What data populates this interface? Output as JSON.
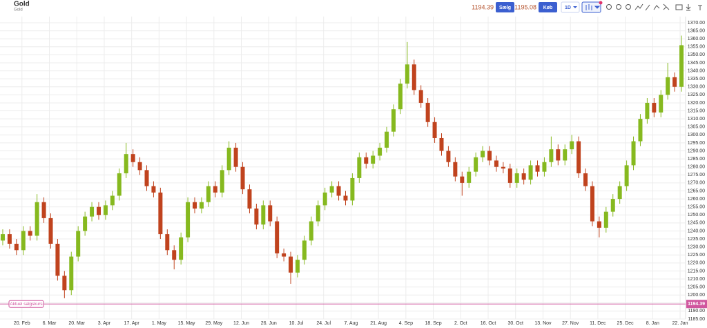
{
  "header": {
    "title": "Gold",
    "subtitle": "Gold",
    "sell_price": "1194.39",
    "sell_button": "Sælg",
    "buy_price": "1195.08",
    "buy_button": "Køb",
    "interval": "1D"
  },
  "chart_data": {
    "type": "candlestick",
    "up_color": "#86b91f",
    "down_color": "#c0431e",
    "grid": true,
    "current_price": {
      "value": 1194.39,
      "label": "1194.39"
    },
    "current_price_label": "Aktuel salgskurs",
    "current_price_color": "#d0569e",
    "xlim": [
      -8,
      242
    ],
    "xticks": [
      {
        "value": 0,
        "label": "20. Feb"
      },
      {
        "value": 10,
        "label": "6. Mar"
      },
      {
        "value": 20,
        "label": "20. Mar"
      },
      {
        "value": 30,
        "label": "3. Apr"
      },
      {
        "value": 40,
        "label": "17. Apr"
      },
      {
        "value": 50,
        "label": "1. May"
      },
      {
        "value": 60,
        "label": "15. May"
      },
      {
        "value": 70,
        "label": "29. May"
      },
      {
        "value": 80,
        "label": "12. Jun"
      },
      {
        "value": 90,
        "label": "26. Jun"
      },
      {
        "value": 100,
        "label": "10. Jul"
      },
      {
        "value": 110,
        "label": "24. Jul"
      },
      {
        "value": 120,
        "label": "7. Aug"
      },
      {
        "value": 130,
        "label": "21. Aug"
      },
      {
        "value": 140,
        "label": "4. Sep"
      },
      {
        "value": 150,
        "label": "18. Sep"
      },
      {
        "value": 160,
        "label": "2. Oct"
      },
      {
        "value": 170,
        "label": "16. Oct"
      },
      {
        "value": 180,
        "label": "30. Oct"
      },
      {
        "value": 190,
        "label": "13. Nov"
      },
      {
        "value": 200,
        "label": "27. Nov"
      },
      {
        "value": 210,
        "label": "11. Dec"
      },
      {
        "value": 220,
        "label": "25. Dec"
      },
      {
        "value": 230,
        "label": "8. Jan"
      },
      {
        "value": 240,
        "label": "22. Jan"
      }
    ],
    "ylim": [
      1185,
      1370
    ],
    "yticks": [
      {
        "value": 1185,
        "label": "1185.00"
      },
      {
        "value": 1190,
        "label": "1190.00"
      },
      {
        "value": 1195,
        "label": "1195.00"
      },
      {
        "value": 1200,
        "label": "1200.00"
      },
      {
        "value": 1205,
        "label": "1205.00"
      },
      {
        "value": 1210,
        "label": "1210.00"
      },
      {
        "value": 1215,
        "label": "1215.00"
      },
      {
        "value": 1220,
        "label": "1220.00"
      },
      {
        "value": 1225,
        "label": "1225.00"
      },
      {
        "value": 1230,
        "label": "1230.00"
      },
      {
        "value": 1235,
        "label": "1235.00"
      },
      {
        "value": 1240,
        "label": "1240.00"
      },
      {
        "value": 1245,
        "label": "1245.00"
      },
      {
        "value": 1250,
        "label": "1250.00"
      },
      {
        "value": 1255,
        "label": "1255.00"
      },
      {
        "value": 1260,
        "label": "1260.00"
      },
      {
        "value": 1265,
        "label": "1265.00"
      },
      {
        "value": 1270,
        "label": "1270.00"
      },
      {
        "value": 1275,
        "label": "1275.00"
      },
      {
        "value": 1280,
        "label": "1280.00"
      },
      {
        "value": 1285,
        "label": "1285.00"
      },
      {
        "value": 1290,
        "label": "1290.00"
      },
      {
        "value": 1295,
        "label": "1295.00"
      },
      {
        "value": 1300,
        "label": "1300.00"
      },
      {
        "value": 1305,
        "label": "1305.00"
      },
      {
        "value": 1310,
        "label": "1310.00"
      },
      {
        "value": 1315,
        "label": "1315.00"
      },
      {
        "value": 1320,
        "label": "1320.00"
      },
      {
        "value": 1325,
        "label": "1325.00"
      },
      {
        "value": 1330,
        "label": "1330.00"
      },
      {
        "value": 1335,
        "label": "1335.00"
      },
      {
        "value": 1340,
        "label": "1340.00"
      },
      {
        "value": 1345,
        "label": "1345.00"
      },
      {
        "value": 1350,
        "label": "1350.00"
      },
      {
        "value": 1355,
        "label": "1355.00"
      },
      {
        "value": 1360,
        "label": "1360.00"
      },
      {
        "value": 1365,
        "label": "1365.00"
      },
      {
        "value": 1370,
        "label": "1370.00"
      }
    ],
    "x": [
      -7,
      -4.5,
      -2,
      0.5,
      3,
      5.5,
      8,
      10.5,
      13,
      15.5,
      18,
      20.5,
      23,
      25.5,
      28,
      30.5,
      33,
      35.5,
      38,
      40.5,
      43,
      45.5,
      48,
      50.5,
      53,
      55.5,
      58,
      60.5,
      63,
      65.5,
      68,
      70.5,
      73,
      75.5,
      78,
      80.5,
      83,
      85.5,
      88,
      90.5,
      93,
      95.5,
      98,
      100.5,
      103,
      105.5,
      108,
      110.5,
      113,
      115.5,
      118,
      120.5,
      123,
      125.5,
      128,
      130.5,
      133,
      135.5,
      138,
      140.5,
      143,
      145.5,
      148,
      150.5,
      153,
      155.5,
      158,
      160.5,
      163,
      165.5,
      168,
      170.5,
      173,
      175.5,
      178,
      180.5,
      183,
      185.5,
      188,
      190.5,
      193,
      195.5,
      198,
      200.5,
      203,
      205.5,
      208,
      210.5,
      213,
      215.5,
      218,
      220.5,
      223,
      225.5,
      228,
      230.5,
      233,
      235.5,
      238,
      240.5
    ],
    "open": [
      1234,
      1238,
      1232,
      1228,
      1240,
      1237,
      1258,
      1248,
      1232,
      1212,
      1203,
      1224,
      1240,
      1249,
      1255,
      1250,
      1256,
      1262,
      1276,
      1288,
      1283,
      1278,
      1268,
      1264,
      1238,
      1228,
      1222,
      1236,
      1258,
      1254,
      1258,
      1268,
      1264,
      1278,
      1292,
      1280,
      1266,
      1254,
      1244,
      1256,
      1246,
      1226,
      1224,
      1214,
      1222,
      1234,
      1246,
      1256,
      1264,
      1268,
      1262,
      1259,
      1273,
      1286,
      1282,
      1287,
      1292,
      1302,
      1316,
      1332,
      1344,
      1328,
      1320,
      1308,
      1298,
      1290,
      1283,
      1274,
      1270,
      1277,
      1286,
      1290,
      1284,
      1280,
      1279,
      1270,
      1276,
      1272,
      1281,
      1277,
      1283,
      1291,
      1284,
      1291,
      1296,
      1276,
      1268,
      1246,
      1242,
      1252,
      1260,
      1268,
      1281,
      1296,
      1310,
      1320,
      1314,
      1325,
      1336,
      1330
    ],
    "high": [
      1241,
      1241,
      1235,
      1243,
      1243,
      1263,
      1261,
      1251,
      1235,
      1215,
      1227,
      1243,
      1252,
      1258,
      1258,
      1259,
      1265,
      1279,
      1295,
      1291,
      1286,
      1281,
      1271,
      1267,
      1241,
      1231,
      1239,
      1261,
      1261,
      1261,
      1271,
      1271,
      1281,
      1296,
      1295,
      1283,
      1269,
      1257,
      1259,
      1259,
      1249,
      1229,
      1227,
      1225,
      1237,
      1249,
      1259,
      1267,
      1271,
      1271,
      1265,
      1276,
      1289,
      1289,
      1290,
      1295,
      1305,
      1319,
      1335,
      1358,
      1347,
      1331,
      1323,
      1311,
      1301,
      1293,
      1286,
      1277,
      1280,
      1289,
      1293,
      1293,
      1287,
      1283,
      1282,
      1279,
      1279,
      1284,
      1284,
      1286,
      1299,
      1294,
      1294,
      1300,
      1299,
      1279,
      1271,
      1249,
      1255,
      1263,
      1271,
      1284,
      1299,
      1313,
      1323,
      1323,
      1328,
      1345,
      1339,
      1362
    ],
    "low": [
      1231,
      1229,
      1225,
      1225,
      1234,
      1234,
      1245,
      1229,
      1209,
      1198,
      1200,
      1221,
      1237,
      1246,
      1247,
      1247,
      1253,
      1259,
      1273,
      1280,
      1275,
      1265,
      1261,
      1235,
      1225,
      1216,
      1219,
      1233,
      1251,
      1251,
      1255,
      1261,
      1261,
      1275,
      1277,
      1263,
      1251,
      1241,
      1241,
      1243,
      1223,
      1221,
      1207,
      1211,
      1219,
      1231,
      1243,
      1253,
      1261,
      1259,
      1256,
      1256,
      1270,
      1279,
      1279,
      1284,
      1289,
      1299,
      1313,
      1329,
      1325,
      1317,
      1305,
      1295,
      1287,
      1280,
      1271,
      1262,
      1267,
      1274,
      1283,
      1281,
      1277,
      1276,
      1267,
      1267,
      1269,
      1269,
      1274,
      1274,
      1280,
      1281,
      1281,
      1288,
      1273,
      1265,
      1243,
      1236,
      1239,
      1249,
      1257,
      1265,
      1278,
      1293,
      1307,
      1311,
      1311,
      1322,
      1327,
      1327
    ],
    "close": [
      1238,
      1232,
      1228,
      1240,
      1237,
      1258,
      1248,
      1232,
      1212,
      1203,
      1224,
      1240,
      1249,
      1255,
      1250,
      1256,
      1262,
      1276,
      1288,
      1283,
      1278,
      1268,
      1264,
      1238,
      1228,
      1222,
      1236,
      1258,
      1254,
      1258,
      1268,
      1264,
      1278,
      1292,
      1280,
      1266,
      1254,
      1244,
      1256,
      1246,
      1226,
      1224,
      1214,
      1222,
      1234,
      1246,
      1256,
      1264,
      1268,
      1262,
      1259,
      1273,
      1286,
      1282,
      1287,
      1292,
      1302,
      1316,
      1332,
      1344,
      1328,
      1320,
      1308,
      1298,
      1290,
      1283,
      1274,
      1270,
      1277,
      1286,
      1290,
      1284,
      1280,
      1279,
      1270,
      1276,
      1272,
      1281,
      1277,
      1283,
      1291,
      1284,
      1291,
      1296,
      1276,
      1268,
      1246,
      1242,
      1252,
      1260,
      1268,
      1281,
      1296,
      1310,
      1320,
      1314,
      1325,
      1336,
      1330,
      1356
    ]
  }
}
